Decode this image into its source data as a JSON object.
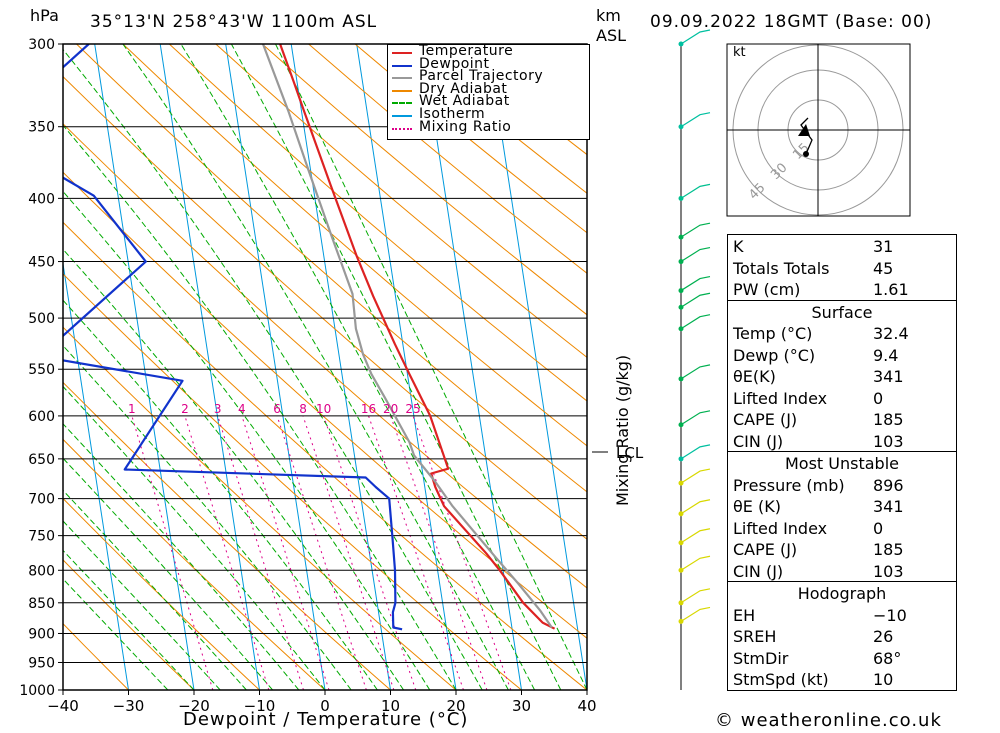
{
  "header": {
    "unit_pressure": "hPa",
    "location": "35°13'N  258°43'W  1100m  ASL",
    "unit_height_km": "km",
    "unit_height_asl": "ASL",
    "datetime": "09.09.2022  18GMT  (Base: 00)"
  },
  "chart_data": {
    "type": "line",
    "title": "35°13'N  258°43'W  1100m  ASL",
    "xlabel": "Dewpoint / Temperature (°C)",
    "ylabel": "hPa",
    "xlim": [
      -40,
      40
    ],
    "ylim": [
      1000,
      300
    ],
    "x_ticks": [
      "-40",
      "-30",
      "-20",
      "-10",
      "0",
      "10",
      "20",
      "30",
      "40"
    ],
    "pressure_levels": [
      300,
      350,
      400,
      450,
      500,
      550,
      600,
      650,
      700,
      750,
      800,
      850,
      900,
      950,
      1000
    ],
    "pressure_labels": [
      "300",
      "350",
      "400",
      "450",
      "500",
      "550",
      "600",
      "650",
      "700",
      "750",
      "800",
      "850",
      "900",
      "950",
      "1000"
    ],
    "mixing_ratio_labels": [
      "1",
      "2",
      "3",
      "4",
      "6",
      "8",
      "10",
      "16",
      "20",
      "25"
    ],
    "lcl_label": "LCL",
    "secondary_axis_label": "Mixing Ratio (g/kg)",
    "legend": [
      {
        "name": "Temperature",
        "color": "#dd2222"
      },
      {
        "name": "Dewpoint",
        "color": "#1133cc"
      },
      {
        "name": "Parcel Trajectory",
        "color": "#999999"
      },
      {
        "name": "Dry Adiabat",
        "color": "#ee8800"
      },
      {
        "name": "Wet Adiabat",
        "color": "#00aa00"
      },
      {
        "name": "Isotherm",
        "color": "#0099dd"
      },
      {
        "name": "Mixing Ratio",
        "color": "#dd0088"
      }
    ],
    "series": [
      {
        "name": "Temperature",
        "color": "#dd2222",
        "points": [
          [
            36.5,
            892
          ],
          [
            34.8,
            882
          ],
          [
            32.3,
            850
          ],
          [
            29.5,
            800
          ],
          [
            27.8,
            775
          ],
          [
            22.5,
            710
          ],
          [
            21.6,
            685
          ],
          [
            21.3,
            668
          ],
          [
            24.0,
            662
          ],
          [
            22.5,
            600
          ],
          [
            20.3,
            555
          ],
          [
            18.8,
            525
          ],
          [
            16.6,
            480
          ],
          [
            15.0,
            445
          ],
          [
            12.7,
            390
          ],
          [
            10.4,
            340
          ],
          [
            9.5,
            322
          ],
          [
            8.3,
            300
          ]
        ]
      },
      {
        "name": "Dewpoint",
        "color": "#1133cc",
        "points": [
          [
            13.2,
            893
          ],
          [
            11.9,
            890
          ],
          [
            12.2,
            865
          ],
          [
            12.8,
            850
          ],
          [
            13.5,
            800
          ],
          [
            13.9,
            750
          ],
          [
            14.3,
            700
          ],
          [
            12.5,
            685
          ],
          [
            11.2,
            673
          ],
          [
            -25.4,
            663
          ],
          [
            -14.5,
            562
          ],
          [
            -35.7,
            537
          ],
          [
            -17.3,
            450
          ],
          [
            -23.7,
            398
          ],
          [
            -38.3,
            355
          ],
          [
            -20.9,
            300
          ]
        ]
      },
      {
        "name": "Parcel Trajectory",
        "color": "#999999",
        "points": [
          [
            36.1,
            890
          ],
          [
            34.7,
            862
          ],
          [
            32.0,
            820
          ],
          [
            29.1,
            780
          ],
          [
            23.8,
            710
          ],
          [
            21.7,
            678
          ],
          [
            19.1,
            646
          ],
          [
            18.7,
            630
          ],
          [
            16.0,
            580
          ],
          [
            14.5,
            555
          ],
          [
            13.7,
            535
          ],
          [
            13.2,
            510
          ],
          [
            13.5,
            478
          ],
          [
            11.7,
            430
          ],
          [
            9.7,
            380
          ],
          [
            8.0,
            340
          ],
          [
            5.7,
            300
          ]
        ]
      }
    ]
  },
  "hodograph": {
    "unit": "kt",
    "ring_labels": [
      "15",
      "30",
      "45"
    ]
  },
  "indices": {
    "rows": [
      {
        "label": "K",
        "value": "31"
      },
      {
        "label": "Totals Totals",
        "value": "45"
      },
      {
        "label": "PW (cm)",
        "value": "1.61"
      }
    ],
    "surface": {
      "title": "Surface",
      "rows": [
        {
          "label": "Temp (°C)",
          "value": "32.4"
        },
        {
          "label": "Dewp (°C)",
          "value": "9.4"
        },
        {
          "label": "θE(K)",
          "value": "341"
        },
        {
          "label": "Lifted Index",
          "value": "0"
        },
        {
          "label": "CAPE (J)",
          "value": "185"
        },
        {
          "label": "CIN (J)",
          "value": "103"
        }
      ]
    },
    "most_unstable": {
      "title": "Most Unstable",
      "rows": [
        {
          "label": "Pressure (mb)",
          "value": "896"
        },
        {
          "label": "θE (K)",
          "value": "341"
        },
        {
          "label": "Lifted Index",
          "value": "0"
        },
        {
          "label": "CAPE (J)",
          "value": "185"
        },
        {
          "label": "CIN (J)",
          "value": "103"
        }
      ]
    },
    "hodograph_section": {
      "title": "Hodograph",
      "rows": [
        {
          "label": "EH",
          "value": "−10"
        },
        {
          "label": "SREH",
          "value": "26"
        },
        {
          "label": "StmDir",
          "value": "68°"
        },
        {
          "label": "StmSpd (kt)",
          "value": "10"
        }
      ]
    }
  },
  "footer": {
    "copyright": "© weatheronline.co.uk"
  }
}
